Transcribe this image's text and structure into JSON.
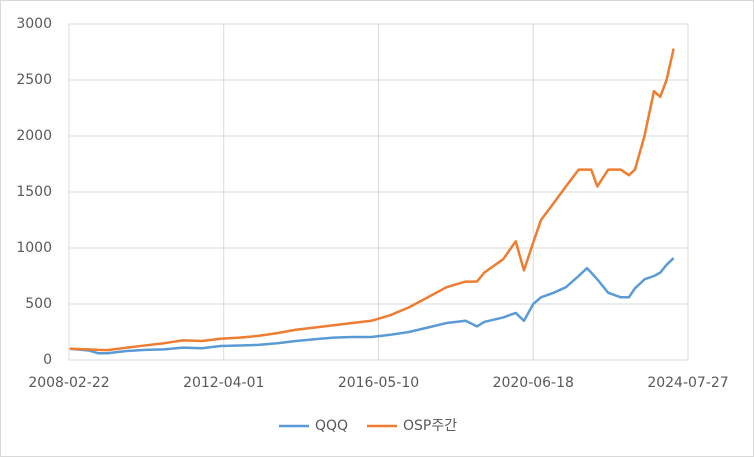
{
  "chart_data": {
    "type": "line",
    "x": [
      "2008-03-01",
      "2008-09-01",
      "2008-12-01",
      "2009-03-01",
      "2009-09-01",
      "2010-03-01",
      "2010-09-01",
      "2011-03-01",
      "2011-09-01",
      "2012-03-01",
      "2012-09-01",
      "2013-03-01",
      "2013-09-01",
      "2014-03-01",
      "2014-09-01",
      "2015-03-01",
      "2015-09-01",
      "2016-03-01",
      "2016-09-01",
      "2017-03-01",
      "2017-09-01",
      "2018-03-01",
      "2018-09-01",
      "2018-12-20",
      "2019-03-01",
      "2019-09-01",
      "2019-12-31",
      "2020-03-20",
      "2020-06-18",
      "2020-09-01",
      "2021-01-01",
      "2021-05-01",
      "2021-09-01",
      "2021-11-20",
      "2022-01-01",
      "2022-03-01",
      "2022-06-15",
      "2022-10-15",
      "2023-01-01",
      "2023-03-01",
      "2023-06-01",
      "2023-09-01",
      "2023-11-01",
      "2024-01-01",
      "2024-03-10"
    ],
    "series": [
      {
        "name": "QQQ",
        "color": "#5b9bd5",
        "values": [
          100,
          85,
          60,
          60,
          80,
          90,
          95,
          110,
          105,
          125,
          130,
          135,
          150,
          170,
          185,
          200,
          205,
          205,
          225,
          250,
          290,
          330,
          350,
          300,
          340,
          380,
          420,
          350,
          500,
          560,
          600,
          650,
          750,
          820,
          780,
          720,
          600,
          560,
          560,
          640,
          720,
          750,
          780,
          850,
          910
        ]
      },
      {
        "name": "OSP주간",
        "color": "#ed7d31",
        "values": [
          100,
          95,
          90,
          88,
          110,
          130,
          150,
          175,
          170,
          190,
          200,
          215,
          240,
          270,
          290,
          310,
          330,
          350,
          400,
          470,
          560,
          650,
          700,
          700,
          780,
          900,
          1060,
          800,
          1050,
          1250,
          1400,
          1550,
          1700,
          1700,
          1700,
          1550,
          1700,
          1700,
          1650,
          1700,
          2000,
          2400,
          2350,
          2500,
          2780
        ]
      }
    ],
    "xlim": [
      "2008-02-22",
      "2024-07-27"
    ],
    "xticks": [
      "2008-02-22",
      "2012-04-01",
      "2016-05-10",
      "2020-06-18",
      "2024-07-27"
    ],
    "ylim": [
      0,
      3000
    ],
    "yticks": [
      0,
      500,
      1000,
      1500,
      2000,
      2500,
      3000
    ],
    "grid": true,
    "legend": "bottom"
  }
}
